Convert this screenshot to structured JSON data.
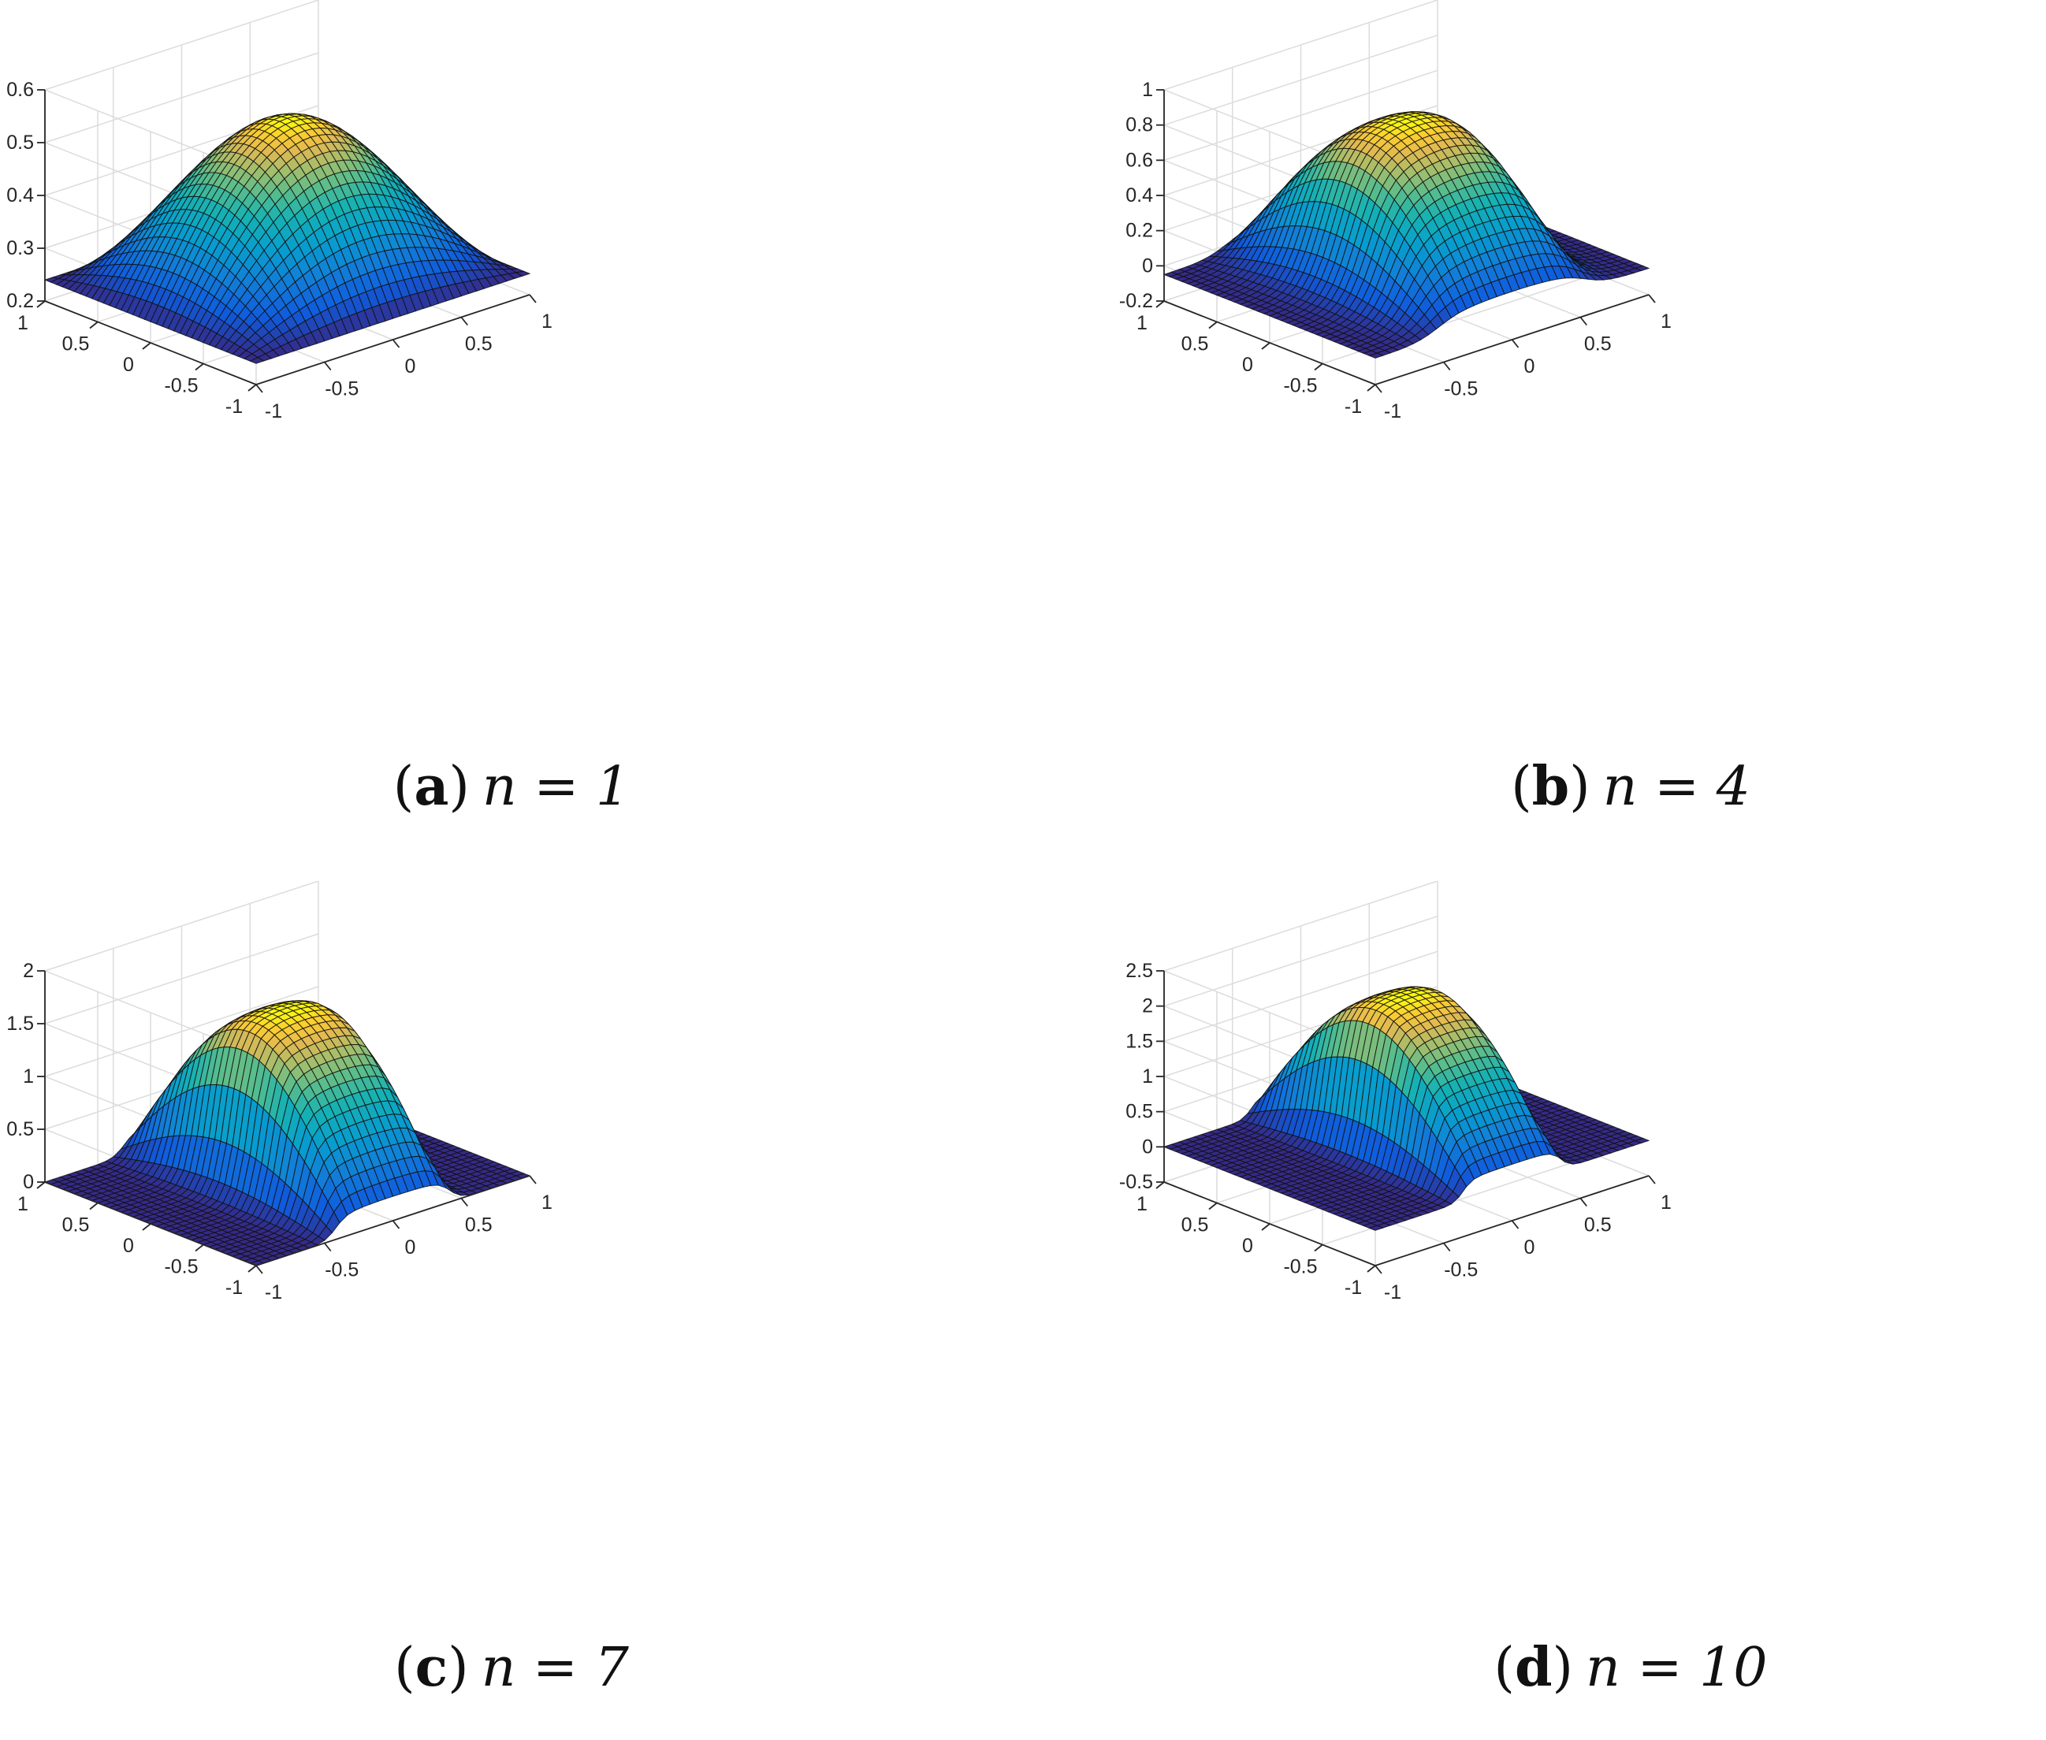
{
  "chart_data": [
    {
      "type": "surface",
      "panel_letter": "a",
      "caption_expr": "n = 1",
      "x_ticks": [
        "-1",
        "-0.5",
        "0",
        "0.5",
        "1"
      ],
      "y_ticks": [
        "-1",
        "-0.5",
        "0",
        "0.5",
        "1"
      ],
      "z_ticks": [
        "0.2",
        "0.3",
        "0.4",
        "0.5",
        "0.6"
      ],
      "xlim": [
        -1,
        1
      ],
      "ylim": [
        -1,
        1
      ],
      "zlim": [
        0.2,
        0.6
      ],
      "grid": true,
      "colormap": "parula",
      "shape": {
        "base": 0.24,
        "peak": 0.54,
        "plateau_edge": 1.0,
        "sharpness": 1
      }
    },
    {
      "type": "surface",
      "panel_letter": "b",
      "caption_expr": "n = 4",
      "x_ticks": [
        "-1",
        "-0.5",
        "0",
        "0.5",
        "1"
      ],
      "y_ticks": [
        "-1",
        "-0.5",
        "0",
        "0.5",
        "1"
      ],
      "z_ticks": [
        "-0.2",
        "0",
        "0.2",
        "0.4",
        "0.6",
        "0.8",
        "1"
      ],
      "xlim": [
        -1,
        1
      ],
      "ylim": [
        -1,
        1
      ],
      "zlim": [
        -0.2,
        1
      ],
      "grid": true,
      "colormap": "parula",
      "shape": {
        "base": -0.05,
        "peak": 0.82,
        "plateau_edge": 0.55,
        "sharpness": 4
      }
    },
    {
      "type": "surface",
      "panel_letter": "c",
      "caption_expr": "n = 7",
      "x_ticks": [
        "-1",
        "-0.5",
        "0",
        "0.5",
        "1"
      ],
      "y_ticks": [
        "-1",
        "-0.5",
        "0",
        "0.5",
        "1"
      ],
      "z_ticks": [
        "0",
        "0.5",
        "1",
        "1.5",
        "2"
      ],
      "xlim": [
        -1,
        1
      ],
      "ylim": [
        -1,
        1
      ],
      "zlim": [
        0,
        2
      ],
      "grid": true,
      "colormap": "parula",
      "shape": {
        "base": 0.0,
        "peak": 1.62,
        "plateau_edge": 0.42,
        "sharpness": 8
      }
    },
    {
      "type": "surface",
      "panel_letter": "d",
      "caption_expr": "n = 10",
      "x_ticks": [
        "-1",
        "-0.5",
        "0",
        "0.5",
        "1"
      ],
      "y_ticks": [
        "-1",
        "-0.5",
        "0",
        "0.5",
        "1"
      ],
      "z_ticks": [
        "-0.5",
        "0",
        "0.5",
        "1",
        "1.5",
        "2",
        "2.5"
      ],
      "xlim": [
        -1,
        1
      ],
      "ylim": [
        -1,
        1
      ],
      "zlim": [
        -0.5,
        2.5
      ],
      "grid": true,
      "colormap": "parula",
      "shape": {
        "base": 0.0,
        "peak": 2.12,
        "plateau_edge": 0.36,
        "sharpness": 10
      }
    }
  ]
}
